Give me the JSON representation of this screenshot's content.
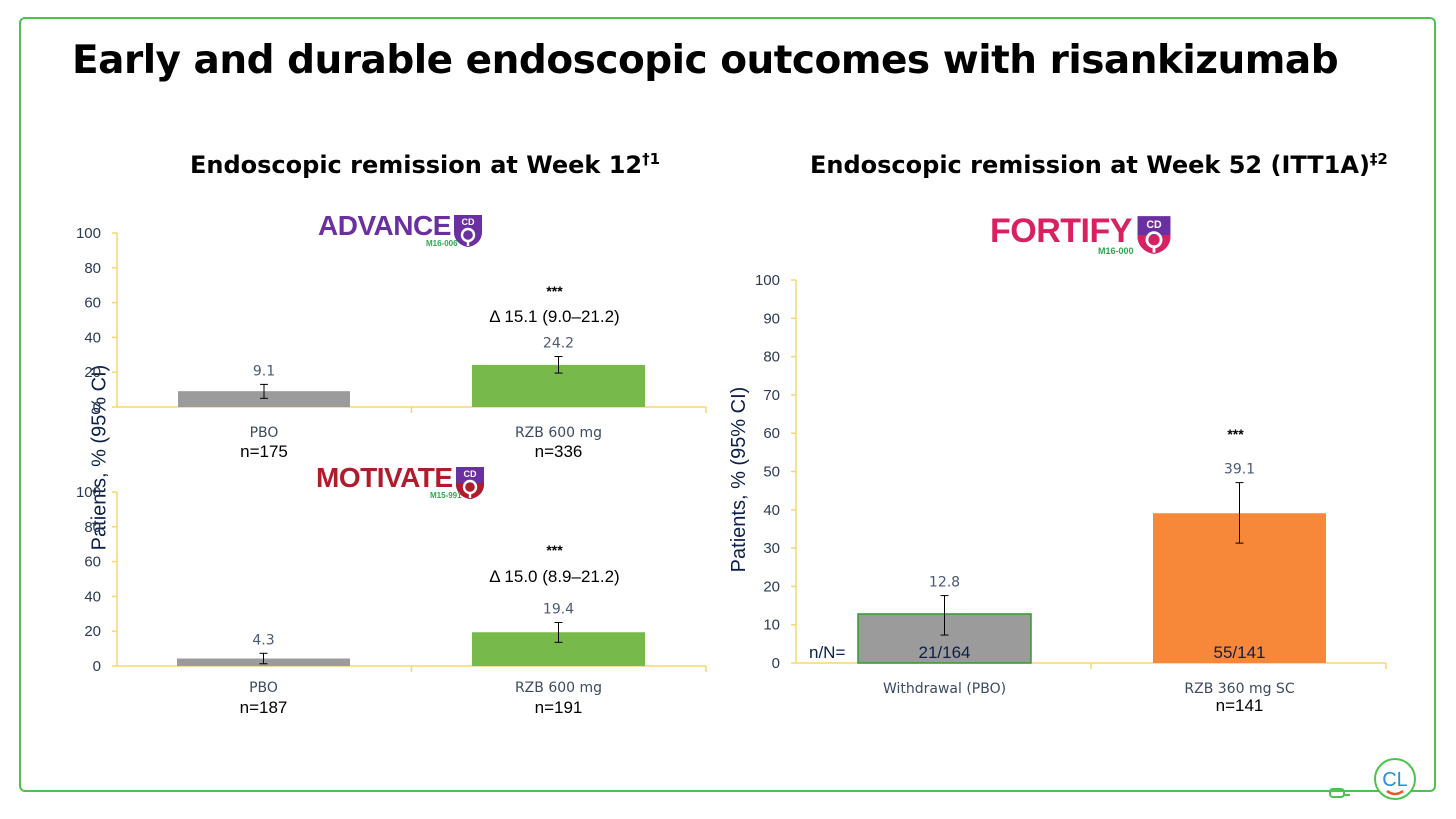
{
  "slide": {
    "title": "Early and durable endoscopic outcomes with risankizumab",
    "ylabel": "Patients, % (95% CI)"
  },
  "colors": {
    "frame": "#4cc34c",
    "placebo_bar": "#9b9b9b",
    "rzb_600_bar": "#77b94a",
    "rzb_360_bar": "#f7883a",
    "axis": "#f5d76e",
    "advance_logo": "#6a2fa0",
    "motivate_logo": "#b01c2c",
    "fortify_logo": "#d8215e"
  },
  "panels": {
    "left": {
      "title": "Endoscopic remission at Week 12",
      "title_sup": "†1"
    },
    "right": {
      "title": "Endoscopic remission at Week 52 (ITT1A)",
      "title_sup": "‡2"
    }
  },
  "logos": {
    "advance": {
      "word": "ADVANCE",
      "code": "M16-006",
      "badge": "CD"
    },
    "motivate": {
      "word": "MOTIVATE",
      "code": "M15-991",
      "badge": "CD"
    },
    "fortify": {
      "word": "FORTIFY",
      "code": "M16-000",
      "badge": "CD"
    }
  },
  "chart_data": [
    {
      "type": "bar",
      "name": "ADVANCE",
      "categories": [
        "PBO",
        "RZB 600 mg"
      ],
      "values": [
        9.1,
        24.2
      ],
      "value_labels": [
        "9.1",
        "24.2"
      ],
      "ci": [
        [
          5.0,
          13.0
        ],
        [
          19.5,
          29.0
        ]
      ],
      "n_labels": [
        "n=175",
        "n=336"
      ],
      "significance": "***",
      "delta": "Δ 15.1 (9.0–21.2)",
      "ylim": [
        0,
        100
      ],
      "yticks": [
        0,
        20,
        40,
        60,
        80,
        100
      ],
      "bar_colors": [
        "#9b9b9b",
        "#77b94a"
      ]
    },
    {
      "type": "bar",
      "name": "MOTIVATE",
      "categories": [
        "PBO",
        "RZB 600 mg"
      ],
      "values": [
        4.3,
        19.4
      ],
      "value_labels": [
        "4.3",
        "19.4"
      ],
      "ci": [
        [
          1.3,
          7.3
        ],
        [
          13.6,
          25.0
        ]
      ],
      "n_labels": [
        "n=187",
        "n=191"
      ],
      "significance": "***",
      "delta": "Δ 15.0 (8.9–21.2)",
      "ylim": [
        0,
        100
      ],
      "yticks": [
        0,
        20,
        40,
        60,
        80,
        100
      ],
      "bar_colors": [
        "#9b9b9b",
        "#77b94a"
      ]
    },
    {
      "type": "bar",
      "name": "FORTIFY",
      "categories": [
        "Withdrawal (PBO)",
        "RZB 360 mg SC"
      ],
      "values": [
        12.8,
        39.1
      ],
      "value_labels": [
        "12.8",
        "39.1"
      ],
      "ci": [
        [
          7.3,
          17.6
        ],
        [
          31.3,
          47.1
        ]
      ],
      "n_labels": [
        "",
        "n=141"
      ],
      "in_bar_labels": [
        "21/164",
        "55/141"
      ],
      "in_bar_prefix": "n/N=",
      "significance": "***",
      "ylim": [
        0,
        100
      ],
      "yticks": [
        0,
        10,
        20,
        30,
        40,
        50,
        60,
        70,
        80,
        90,
        100
      ],
      "bar_colors": [
        "#9b9b9b",
        "#f7883a"
      ]
    }
  ]
}
